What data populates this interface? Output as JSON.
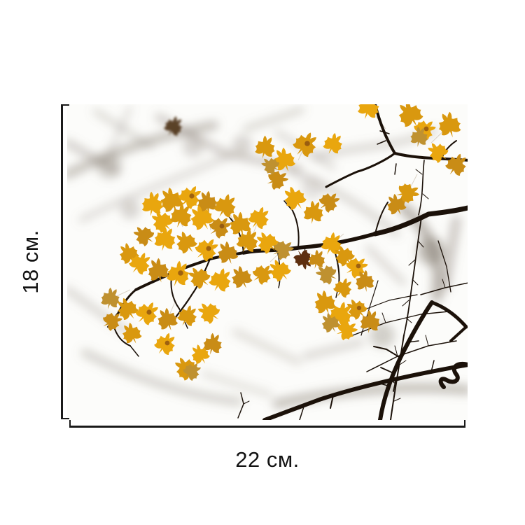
{
  "page": {
    "background": "#ffffff"
  },
  "product_image": {
    "subject": "Branch with yellow autumn maple leaves against a blurred pale sky with out-of-focus twigs",
    "height_label": "18 см.",
    "width_label": "22 см.",
    "colors": {
      "leaf_palette": [
        "#e9a60e",
        "#d9980f",
        "#c98c16",
        "#bf9130"
      ],
      "leaf_spot": "#7e4511",
      "branch_dark": "#1b1109",
      "bokeh_gray": "#857b71",
      "photo_background": "#fcfcfa",
      "dead_leaf_blur": "#4d3014",
      "dead_leaf_sharp": "#5d2f10",
      "petiole": "#d5ccbe",
      "bracket_line": "#1a1a1a",
      "label_text": "#121212"
    }
  }
}
